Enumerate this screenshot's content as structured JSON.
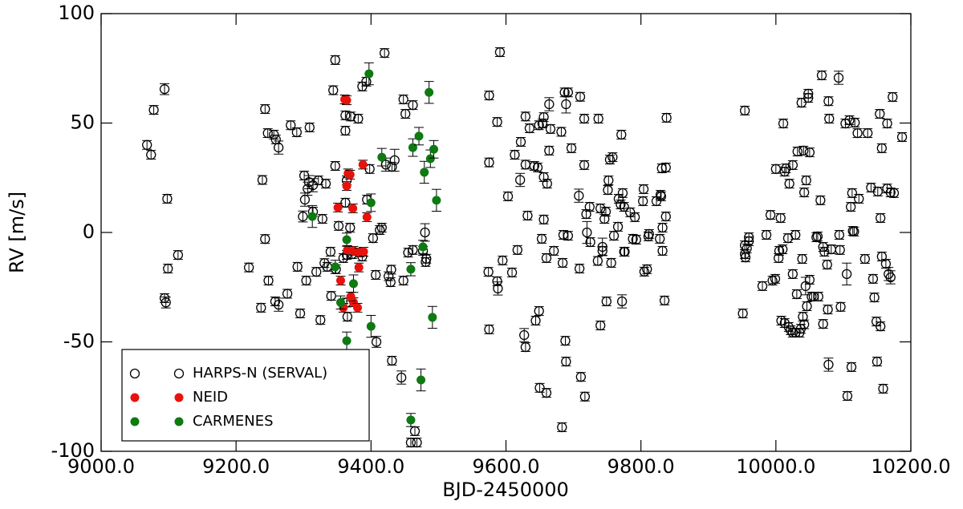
{
  "chart_data": {
    "type": "scatter",
    "x_label": "BJD-2450000",
    "y_label": "RV [m/s]",
    "xlim": [
      9000,
      10200
    ],
    "ylim": [
      -100,
      100
    ],
    "xticks": [
      {
        "value": 9000,
        "label": "9000.0"
      },
      {
        "value": 9200,
        "label": "9200.0"
      },
      {
        "value": 9400,
        "label": "9400.0"
      },
      {
        "value": 9600,
        "label": "9600.0"
      },
      {
        "value": 9800,
        "label": "9800.0"
      },
      {
        "value": 10000,
        "label": "10000.0"
      },
      {
        "value": 10200,
        "label": "10200.0"
      }
    ],
    "yticks": [
      -100,
      -50,
      0,
      50,
      100
    ],
    "legend": "lower left",
    "grid": false,
    "series": [
      {
        "name": "HARPS-N (SERVAL)",
        "color": "#000000",
        "marker": "open",
        "x": [
          9068,
          9074,
          9078,
          9094,
          9098,
          9099,
          9094,
          9096,
          9114,
          9219,
          9237,
          9243,
          9239,
          9243,
          9247,
          9248,
          9256,
          9258,
          9259,
          9263,
          9263,
          9276,
          9281,
          9290,
          9291,
          9295,
          9299,
          9301,
          9302,
          9304,
          9306,
          9309,
          9308,
          9314,
          9314,
          9319,
          9322,
          9325,
          9328,
          9331,
          9333,
          9335,
          9340,
          9341,
          9344,
          9347,
          9347,
          9348,
          9352,
          9359,
          9362,
          9362,
          9362,
          9364,
          9364,
          9365,
          9364,
          9369,
          9370,
          9372,
          9381,
          9387,
          9387,
          9393,
          9394,
          9398,
          9403,
          9407,
          9408,
          9413,
          9416,
          9420,
          9422,
          9426,
          9429,
          9430,
          9431,
          9435,
          9431,
          9445,
          9448,
          9448,
          9451,
          9455,
          9459,
          9462,
          9462,
          9465,
          9468,
          9477,
          9481,
          9482,
          9480,
          9574,
          9575,
          9575,
          9575,
          9588,
          9587,
          9591,
          9587,
          9595,
          9603,
          9609,
          9613,
          9617,
          9622,
          9621,
          9627,
          9629,
          9629,
          9629,
          9632,
          9635,
          9642,
          9644,
          9647,
          9649,
          9649,
          9650,
          9653,
          9654,
          9656,
          9656,
          9656,
          9660,
          9660,
          9661,
          9664,
          9664,
          9666,
          9671,
          9682,
          9683,
          9684,
          9685,
          9687,
          9688,
          9689,
          9689,
          9692,
          9692,
          9697,
          9708,
          9709,
          9710,
          9711,
          9716,
          9716,
          9717,
          9720,
          9719,
          9724,
          9725,
          9737,
          9736,
          9740,
          9740,
          9743,
          9743,
          9746,
          9748,
          9749,
          9751,
          9752,
          9754,
          9756,
          9758,
          9760,
          9766,
          9767,
          9770,
          9771,
          9772,
          9773,
          9775,
          9775,
          9776,
          9784,
          9788,
          9791,
          9793,
          9803,
          9804,
          9805,
          9809,
          9811,
          9812,
          9823,
          9828,
          9829,
          9830,
          9831,
          9832,
          9832,
          9835,
          9837,
          9838,
          9837,
          9951,
          9954,
          9954,
          9954,
          9955,
          9957,
          9960,
          9960,
          9980,
          9986,
          9992,
          9995,
          9999,
          10000,
          10004,
          10005,
          10007,
          10008,
          10010,
          10011,
          10013,
          10013,
          10015,
          10018,
          10019,
          10020,
          10022,
          10025,
          10025,
          10025,
          10029,
          10029,
          10031,
          10032,
          10035,
          10037,
          10038,
          10039,
          10040,
          10041,
          10042,
          10042,
          10044,
          10045,
          10046,
          10048,
          10048,
          10050,
          10050,
          10053,
          10056,
          10060,
          10062,
          10063,
          10066,
          10068,
          10070,
          10070,
          10072,
          10076,
          10077,
          10078,
          10078,
          10079,
          10082,
          10093,
          10094,
          10095,
          10096,
          10103,
          10105,
          10106,
          10109,
          10111,
          10112,
          10113,
          10114,
          10116,
          10117,
          10121,
          10123,
          10132,
          10136,
          10141,
          10144,
          10146,
          10149,
          10150,
          10151,
          10154,
          10155,
          10155,
          10157,
          10157,
          10159,
          10163,
          10165,
          10165,
          10167,
          10170,
          10170,
          10173,
          10175,
          10187
        ],
        "values": [
          40,
          35.5,
          56,
          65.5,
          15.4,
          -16.5,
          -30,
          -32,
          -10.3,
          -16,
          -34.4,
          -3,
          24,
          56.4,
          45.4,
          -22,
          44.7,
          -31.5,
          42.5,
          38.8,
          -33,
          -28,
          49,
          45.8,
          -15.7,
          -37,
          7.3,
          26,
          15,
          -22,
          20,
          48,
          23,
          9.5,
          21.6,
          -18,
          23.8,
          -40,
          6.2,
          -14,
          22.3,
          -15.7,
          -8.8,
          -29,
          65,
          78.8,
          30.4,
          -16.8,
          3,
          -11.7,
          53.5,
          13.6,
          46.5,
          23.8,
          -32,
          -38.5,
          -10.3,
          2.2,
          53,
          -9.9,
          52,
          -11,
          66.7,
          68.9,
          15,
          29,
          -2.6,
          -19.4,
          -50,
          1.1,
          2.2,
          82,
          31,
          -20,
          -22.7,
          -17,
          -58.6,
          33,
          30,
          -66.3,
          60.8,
          -22,
          54.2,
          -9.2,
          -96,
          -8,
          58.2,
          -90.8,
          -96,
          -8.4,
          -13.5,
          -12,
          0,
          -18,
          -44.3,
          62.6,
          32,
          -25.6,
          -22.3,
          82.4,
          50.5,
          -12.8,
          16.5,
          -18.3,
          35.5,
          -8,
          41.4,
          24,
          -46.9,
          -52.4,
          53,
          31,
          7.7,
          47.6,
          30.4,
          -40.3,
          29.7,
          49,
          -35.9,
          -71,
          -2.9,
          49.8,
          52.7,
          5.9,
          25.3,
          -11.7,
          -73.3,
          22.3,
          58.6,
          37.4,
          47.3,
          -8.4,
          46,
          -89,
          -13.9,
          -1.1,
          64,
          -49.5,
          58.6,
          -59,
          -1.5,
          64,
          38.5,
          16.8,
          -16.5,
          62,
          -66,
          30.8,
          52,
          -75,
          0,
          8.4,
          11.7,
          -4.4,
          52,
          -13,
          -42.5,
          11,
          -8.4,
          -6.6,
          6.2,
          9.5,
          -31.5,
          19.4,
          23.8,
          33.3,
          -13.9,
          34.4,
          -1.5,
          2.6,
          15.4,
          12.8,
          44.7,
          -31.5,
          18,
          11.7,
          -8.8,
          -8.8,
          9.2,
          -2.9,
          7,
          -3.3,
          14.3,
          19.8,
          -17.9,
          -16.8,
          -1.8,
          -0.7,
          14.3,
          -2.9,
          17.2,
          16.5,
          29.3,
          -8.4,
          2.2,
          -31.1,
          7.3,
          52.4,
          29.7,
          -37,
          55.7,
          -9.9,
          -5.9,
          -11.4,
          -7.3,
          -4,
          -2.2,
          -24.5,
          -1.1,
          8,
          -22,
          -21.2,
          29,
          -11.7,
          -8.4,
          6.6,
          -40.3,
          -7.7,
          49.8,
          27.8,
          -41.4,
          29.3,
          -2.6,
          -43.2,
          22.3,
          -44.7,
          -19,
          -45.8,
          30.8,
          -45.8,
          -1.1,
          -28.2,
          37,
          -45.8,
          -44,
          59.3,
          -12.1,
          -38.5,
          37.4,
          18.3,
          -42,
          -24.5,
          23.8,
          -33.7,
          61.5,
          63.4,
          -21.6,
          36.6,
          -29.3,
          -29.3,
          -2.2,
          -1.8,
          -29.3,
          14.7,
          71.8,
          -6.6,
          -41.8,
          -8.8,
          -14.7,
          -35.2,
          -60.4,
          60,
          52,
          -7.7,
          70.7,
          -1.1,
          -8,
          -34,
          49.8,
          -19,
          -74.7,
          51.3,
          11.7,
          -61.5,
          18,
          0.7,
          0.4,
          50.2,
          45.4,
          15.4,
          -12.1,
          45.4,
          20.5,
          -21.2,
          -29.7,
          -40.7,
          -59,
          18.7,
          54.2,
          -42.9,
          6.6,
          38.5,
          -11,
          -71.4,
          -14.3,
          49.8,
          20.1,
          -19,
          -20.5,
          18.3,
          61.9,
          18,
          43.6
        ],
        "errors": [
          2,
          2,
          2,
          2.5,
          2,
          2,
          2,
          2.5,
          2,
          2,
          2,
          2,
          2,
          2,
          2,
          2,
          2,
          2,
          2,
          3,
          3,
          2,
          2,
          2,
          2,
          2,
          2.5,
          2,
          3,
          2,
          3,
          2,
          3,
          2,
          3,
          2,
          2,
          2,
          2,
          2,
          2,
          2,
          2,
          2,
          2,
          2,
          2,
          2,
          2,
          2,
          2,
          2,
          2,
          2,
          2,
          2,
          2,
          2,
          2,
          2,
          2,
          2,
          2,
          2,
          2,
          2,
          2,
          2,
          2.5,
          2,
          2,
          2,
          3,
          2,
          2,
          2,
          2,
          5,
          2,
          3,
          2,
          2,
          2,
          2,
          2,
          2,
          2,
          2,
          2,
          2,
          2,
          2,
          4,
          2,
          2,
          2,
          2,
          3,
          2,
          2,
          2,
          2,
          2,
          2,
          2,
          2,
          2,
          3,
          3,
          2,
          2,
          2,
          2,
          2,
          2,
          2,
          2,
          2,
          2,
          2,
          2,
          2,
          2,
          2,
          2,
          2,
          2,
          2,
          3,
          2,
          2,
          2,
          2,
          2,
          2,
          2,
          2,
          2,
          4,
          2,
          2,
          2,
          2,
          3,
          2,
          2,
          2,
          2,
          2,
          2,
          5,
          2,
          2,
          2,
          2,
          2,
          2,
          2,
          2,
          4,
          2,
          2,
          2,
          2,
          2,
          2,
          2,
          2,
          2,
          2,
          2,
          2,
          2,
          3,
          2,
          2,
          2,
          2,
          2,
          2,
          2,
          2,
          2,
          2,
          2,
          2,
          2,
          2,
          2,
          2,
          2,
          2,
          2,
          2,
          2,
          2,
          2,
          2,
          2,
          2,
          2,
          2,
          2,
          2,
          2,
          2,
          2,
          2,
          2,
          2,
          2,
          2,
          2,
          2,
          2,
          2,
          2,
          2,
          2,
          2,
          2,
          2,
          2,
          2,
          2,
          2,
          2,
          2,
          2,
          2,
          2,
          2,
          2,
          2,
          2,
          2,
          2,
          2,
          2,
          2,
          2,
          4,
          2,
          2,
          2,
          2,
          2,
          2,
          2,
          2,
          2,
          2,
          2,
          2,
          2,
          2,
          2,
          2,
          2,
          2,
          3,
          2,
          2,
          2,
          3,
          2,
          2,
          2,
          2,
          5,
          2,
          2,
          2,
          2,
          2,
          2,
          2,
          2,
          2,
          2,
          2,
          2,
          2,
          2,
          2,
          2,
          2,
          2,
          2,
          2,
          2,
          2,
          2,
          2,
          2,
          2,
          2,
          3,
          3,
          2,
          2,
          2,
          2
        ]
      },
      {
        "name": "NEID",
        "color": "#e8120c",
        "marker": "filled",
        "x": [
          9361,
          9364,
          9366,
          9369,
          9364,
          9351,
          9373,
          9388,
          9394,
          9365,
          9374,
          9383,
          9389,
          9382,
          9355,
          9359,
          9374,
          9380,
          9370
        ],
        "values": [
          60.8,
          60.4,
          27,
          26.4,
          21.2,
          11.4,
          11,
          31,
          7,
          -8,
          -8.4,
          -9.2,
          -8.8,
          -16,
          -22,
          -34.4,
          -31.9,
          -34.4,
          -29.3
        ],
        "errors": [
          2,
          2,
          2,
          2,
          2,
          2,
          2,
          2,
          2,
          2,
          2,
          2,
          2,
          2,
          2,
          2,
          2,
          2,
          2
        ]
      },
      {
        "name": "CARMENES",
        "color": "#0d7a12",
        "marker": "filled",
        "x": [
          9313,
          9347,
          9355,
          9364,
          9364,
          9374,
          9397,
          9400,
          9400,
          9416,
          9459,
          9459,
          9462,
          9471,
          9474,
          9477,
          9479,
          9486,
          9488,
          9491,
          9493,
          9497
        ],
        "values": [
          7.3,
          -15.7,
          -32,
          -3.3,
          -49.5,
          -23.4,
          72.5,
          13.6,
          -42.9,
          34.4,
          -16.8,
          -85.7,
          38.8,
          44,
          -67.4,
          -6.6,
          27.5,
          64,
          33.7,
          -38.8,
          38,
          14.7
        ],
        "errors": [
          5,
          3,
          3,
          3,
          4,
          4,
          5,
          4,
          5,
          4,
          3,
          3,
          4,
          4,
          5,
          3,
          5,
          5,
          4,
          5,
          4,
          5
        ]
      }
    ]
  }
}
